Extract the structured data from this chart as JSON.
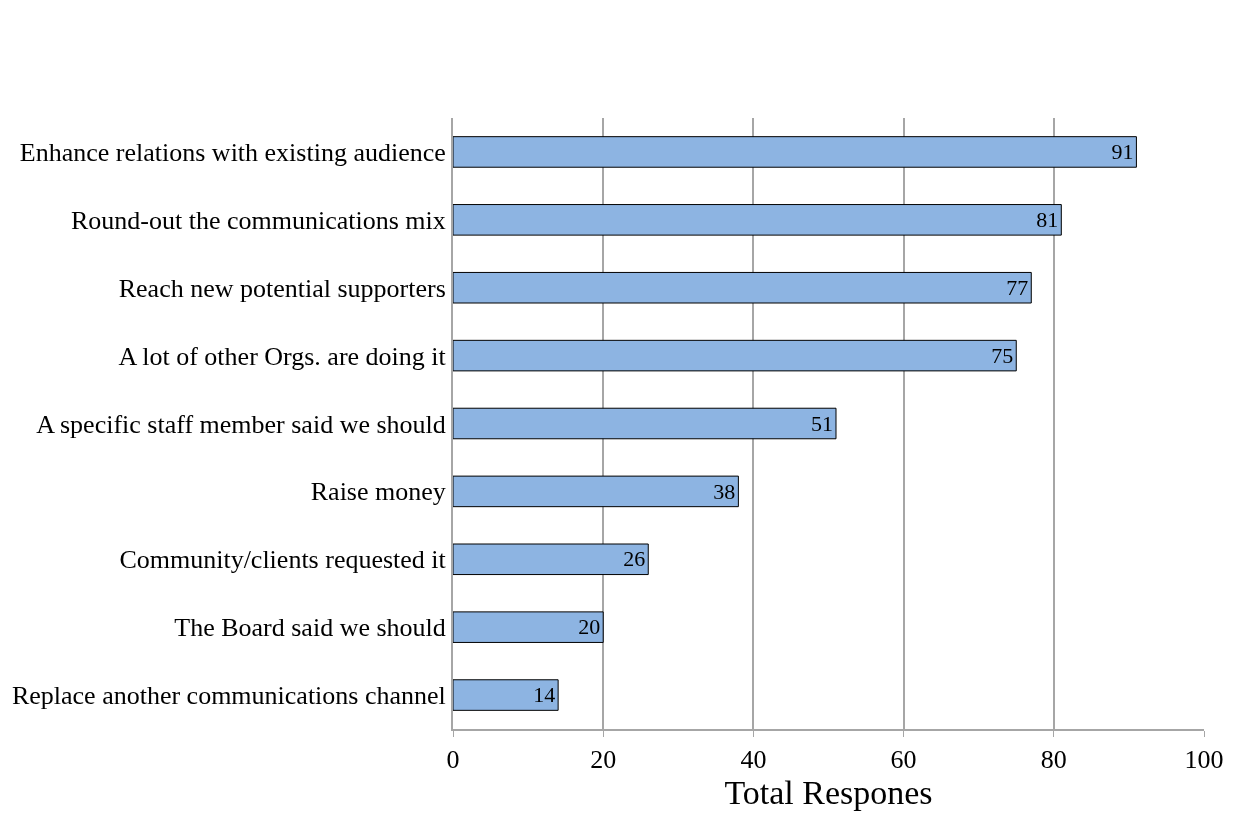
{
  "chart_data": {
    "type": "bar",
    "orientation": "horizontal",
    "xlabel": "Total Respones",
    "categories": [
      "Enhance relations with existing audience",
      "Round-out the communications mix",
      "Reach new potential supporters",
      "A lot of other Orgs. are doing it",
      "A specific staff member said we should",
      "Raise money",
      "Community/clients requested it",
      "The Board said we should",
      "Replace another communications channel"
    ],
    "values": [
      91,
      81,
      77,
      75,
      51,
      38,
      26,
      20,
      14
    ],
    "color": "#8db4e2",
    "xlim": [
      0,
      100
    ],
    "xticks": [
      0,
      20,
      40,
      60,
      80,
      100
    ],
    "grid": "x",
    "data_labels": true
  }
}
